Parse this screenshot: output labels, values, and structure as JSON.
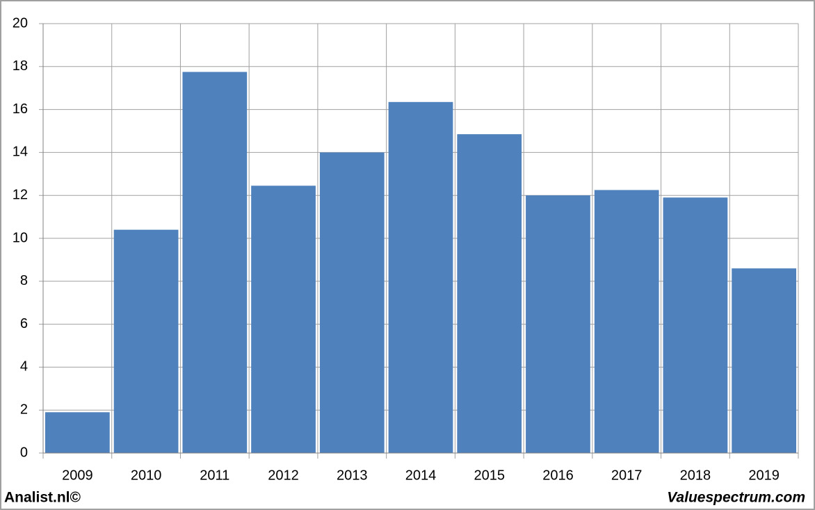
{
  "chart_data": {
    "type": "bar",
    "categories": [
      "2009",
      "2010",
      "2011",
      "2012",
      "2013",
      "2014",
      "2015",
      "2016",
      "2017",
      "2018",
      "2019"
    ],
    "values": [
      1.9,
      10.4,
      17.75,
      12.45,
      14.0,
      16.35,
      14.85,
      12.0,
      12.25,
      11.9,
      8.6
    ],
    "color": "#4f81bd",
    "ylim": [
      0,
      20
    ],
    "yticks": [
      0,
      2,
      4,
      6,
      8,
      10,
      12,
      14,
      16,
      18,
      20
    ],
    "grid": true,
    "source": "Analist.nl©",
    "credit": "Valuespectrum.com"
  }
}
